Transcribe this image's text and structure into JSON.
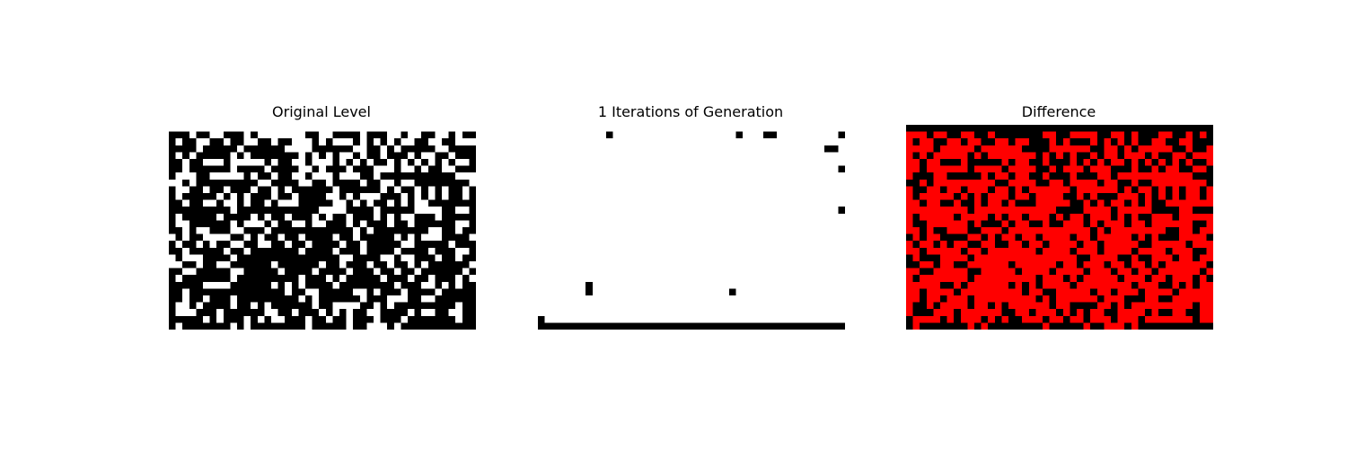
{
  "chart_data": [
    {
      "type": "heatmap",
      "title": "Original Level",
      "rows": 30,
      "cols": 45,
      "colors": {
        "0": "#ffffff",
        "1": "#000000"
      },
      "values": [
        "000000000000000000000000000000000000000000000",
        "111011001110100000001100111101110010011001011",
        "101100110110011011000101000101010100110011000",
        "111101111101111110000111111001101011111001111",
        "101011111010111111101010100101101110100110111",
        "110110001000001011001000101010110101010101001",
        "110111111011110111100101110111000100101100111",
        "100011000001011011001000100011011111111111000",
        "001011111111100111100110111101100100111111110",
        "100110110111011010111111011111101011010101101",
        "101111101010111011011110010100011101010101101",
        "110110010010110100011111001010110101001111111",
        "111111111011111111111100001111011111000011001",
        "101111101111010110111010110111010100111011111",
        "100111111010001011001001110101110110111111001",
        "110100111001110111111111111010111111110011011",
        "010110000110101101101111011011111010100011110",
        "101101011001100110110111101101111100111110111",
        "110111110110111111101111011101111011110111001",
        "010001111011111111111111100111100100111011011",
        "001101100111111011111101101110110110101111110",
        "110011111001111101111011110111011011011111101",
        "101111111011111111101110101111101110110111010",
        "111110000111111010101111011111111011100101011",
        "110111111111111110110011111001011101111011111",
        "110110111011111111101011111101110001100111111",
        "100101111011010111111011000011010111111111011",
        "100011101111110011011101010110011110100110011",
        "111110101110101001110110110111011101111111011",
        "101111111010111111110111110110001011111111111"
      ]
    },
    {
      "type": "heatmap",
      "title": "1 Iterations of Generation",
      "rows": 30,
      "cols": 45,
      "colors": {
        "0": "#ffffff",
        "1": "#000000"
      },
      "values": [
        "000000000000000000000000000000000000000000000",
        "000000000010000000000000000001000110000000001",
        "000000000000000000000000000000000000000000000",
        "000000000000000000000000000000000000000000110",
        "000000000000000000000000000000000000000000000",
        "000000000000000000000000000000000000000000000",
        "000000000000000000000000000000000000000000001",
        "000000000000000000000000000000000000000000000",
        "000000000000000000000000000000000000000000000",
        "000000000000000000000000000000000000000000000",
        "000000000000000000000000000000000000000000000",
        "000000000000000000000000000000000000000000000",
        "000000000000000000000000000000000000000000001",
        "000000000000000000000000000000000000000000000",
        "000000000000000000000000000000000000000000000",
        "000000000000000000000000000000000000000000000",
        "000000000000000000000000000000000000000000000",
        "000000000000000000000000000000000000000000000",
        "000000000000000000000000000000000000000000000",
        "000000000000000000000000000000000000000000000",
        "000000000000000000000000000000000000000000000",
        "000000000000000000000000000000000000000000000",
        "000000000000000000000000000000000000000000000",
        "000000010000000000000000000000000000000000000",
        "000000010000000000000000000010000000000000000",
        "000000000000000000000000000000000000000000000",
        "000000000000000000000000000000000000000000000",
        "000000000000000000000000000000000000000000000",
        "100000000000000000000000000000000000000000000",
        "111111111111111111111111111111111111111111111"
      ]
    },
    {
      "type": "heatmap",
      "title": "Difference",
      "rows": 30,
      "cols": 45,
      "colors": {
        "0": "#000000",
        "1": "#ff0000"
      },
      "values": [
        "000000000000000000000000000000000000000000000",
        "111011001100100000001100111100110100011001010",
        "101100110110011011000101000101010100110011000",
        "111101111101111110000111111001101011111001001",
        "101011111010111111101010100101101110100110111",
        "110110001000001011001000101010110101010101001",
        "110111111011110111100101110111000100101100110",
        "100011000001011011001000100011011111111111000",
        "001011111111100111100110111101100100111111110",
        "100110110111011010111111011111101011010101101",
        "101111101010111011011110010100011101010101101",
        "110110010010110100011111001010110101001111111",
        "111111111011111111111100001111011111000011000",
        "101111101111010110111010110111010100111011111",
        "100111111010001011001001110101110110111111001",
        "110100111001110111111111111010111111110011011",
        "010110000110101101101111011011111010100011110",
        "101101011001100110110111101101111100111110111",
        "110111110110111111101111011101111011110111001",
        "010001111011111111111111100111100100111011011",
        "001101100111111011111101101110110110101111110",
        "110011111001111101111011110111011011011111101",
        "101111111011111111101110101111101110110111010",
        "111110010111111010101111011111111011100101011",
        "110111101111111110110011111011011101111011111",
        "110110111011111111101011111101110001100111111",
        "100101111011010111111011000011010111111111011",
        "100011101111110011011101010110011110100110011",
        "011110101110101001110110110111011101111111011",
        "010000000101000000001000001001110100000000000"
      ]
    }
  ]
}
